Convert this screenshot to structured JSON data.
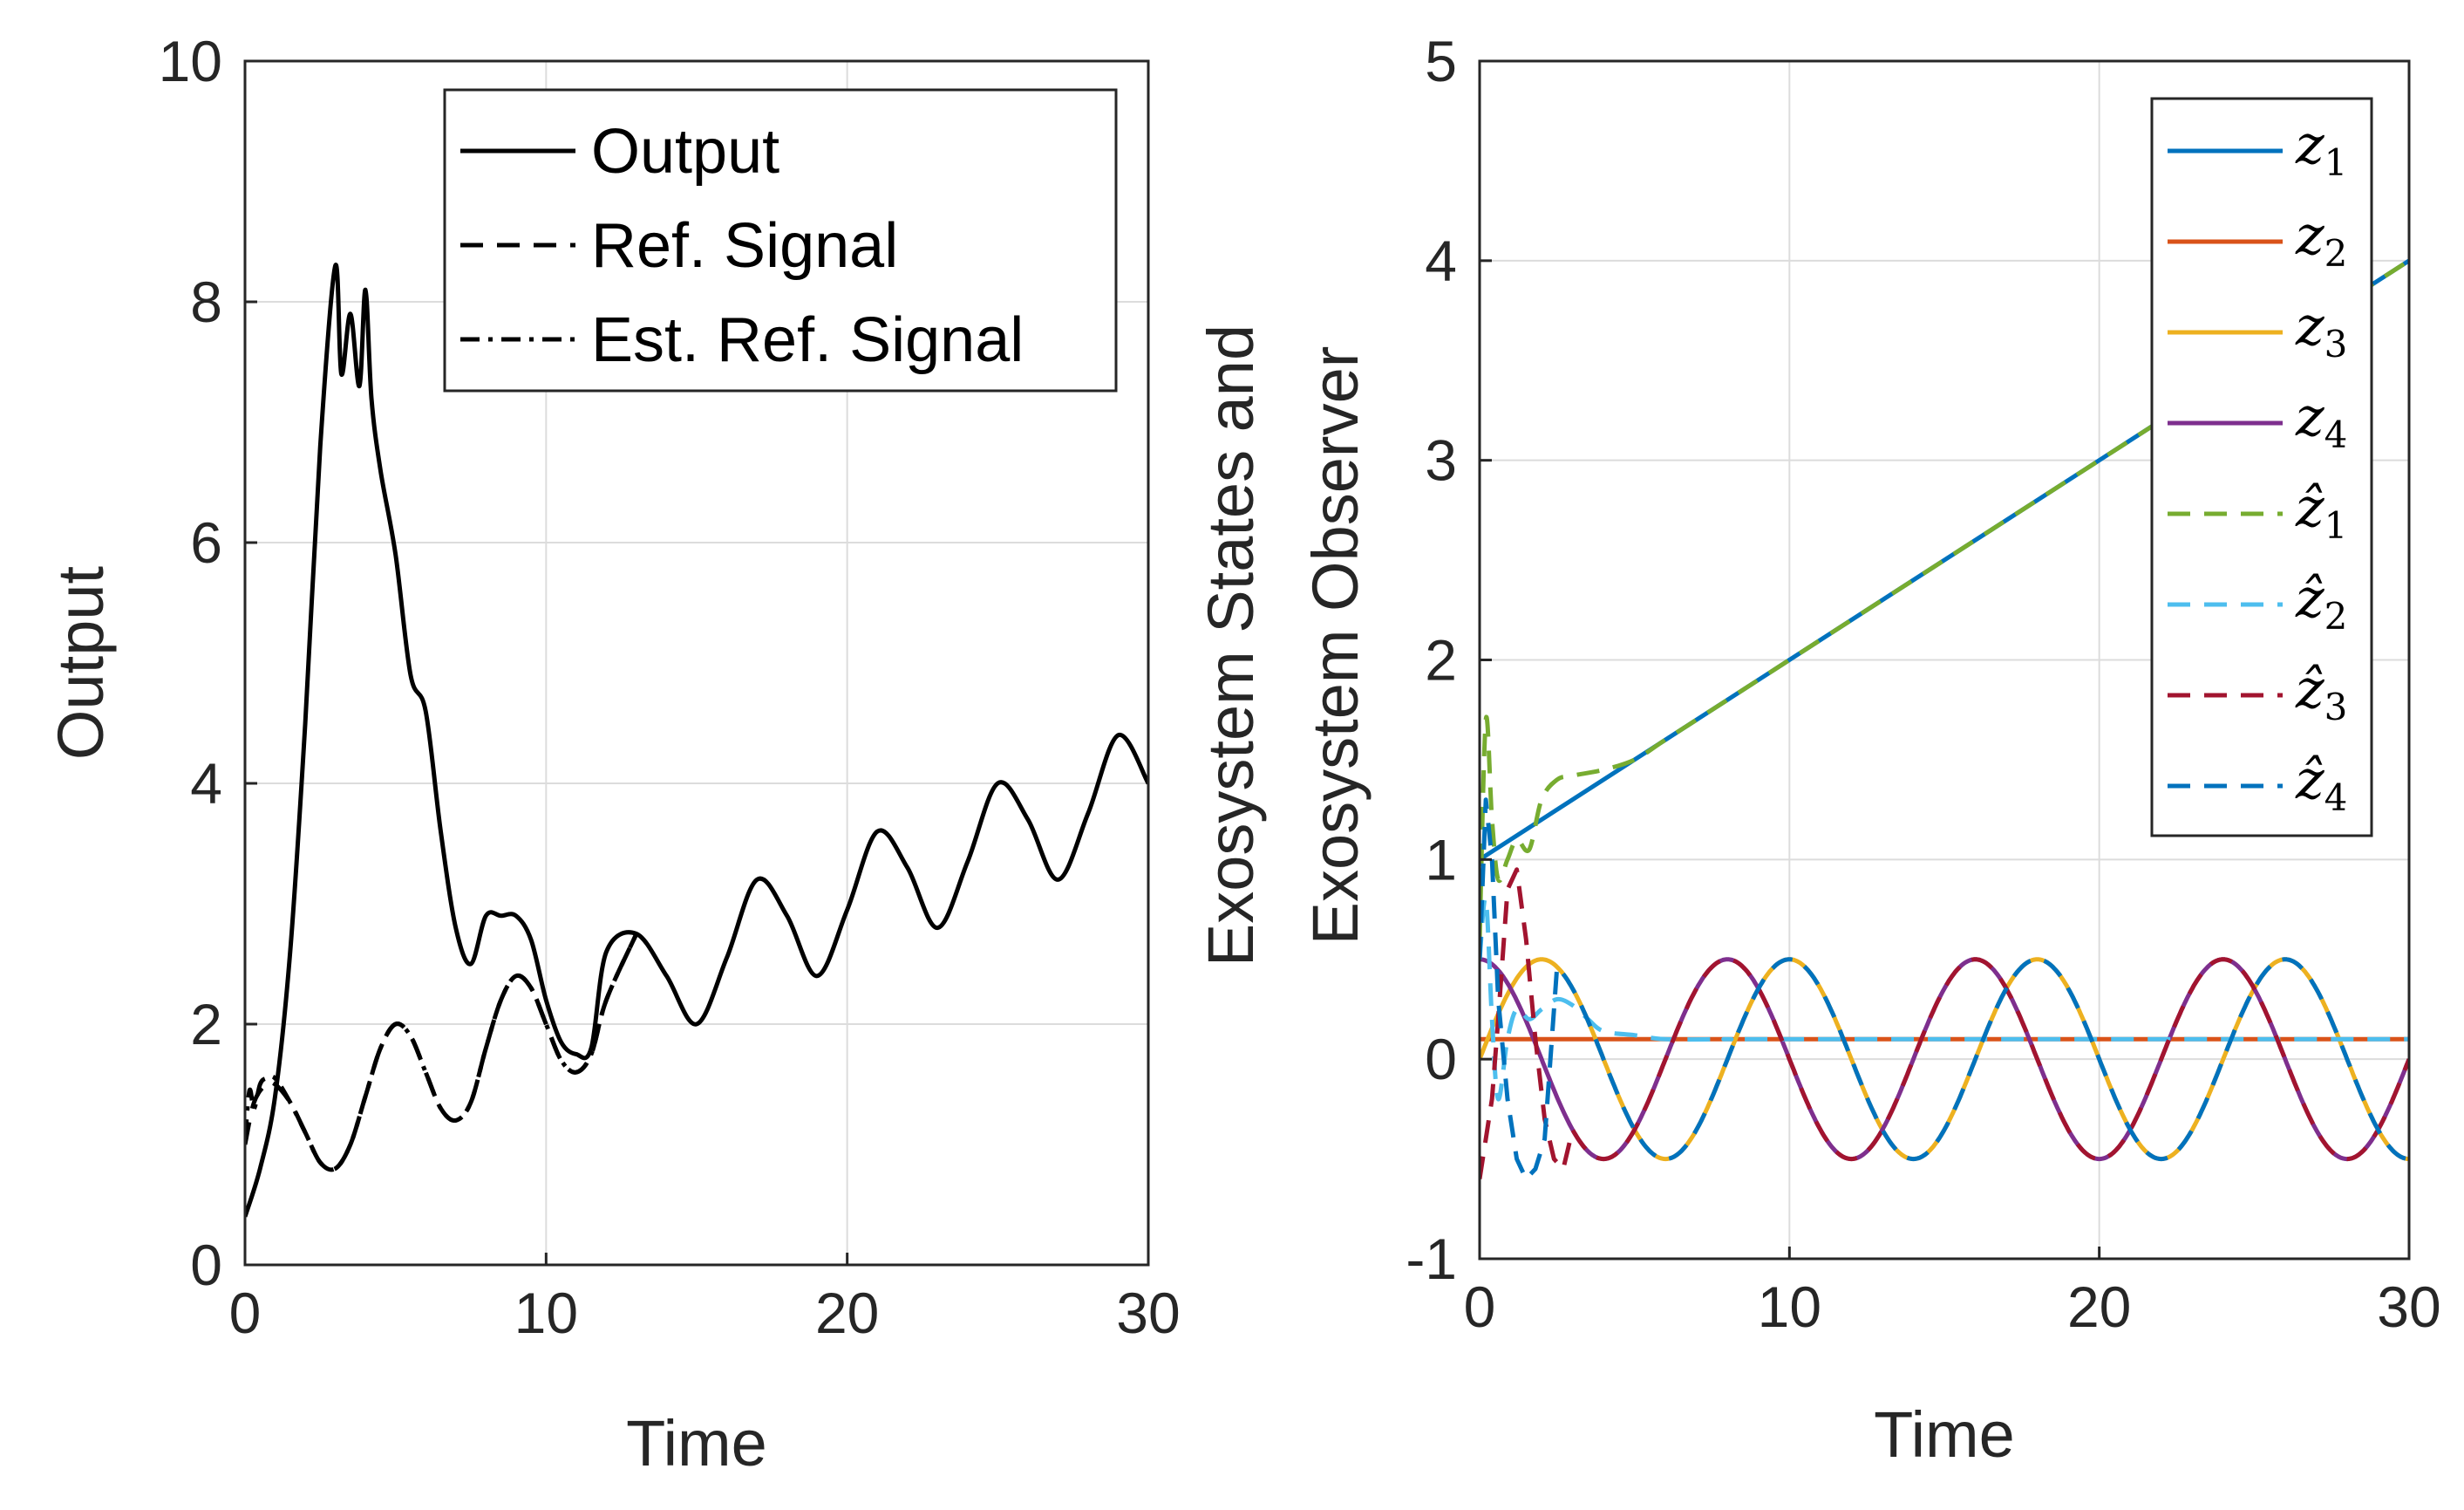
{
  "chart_data": [
    {
      "type": "line",
      "xlabel": "Time",
      "ylabel": "Output",
      "xlim": [
        0,
        30
      ],
      "ylim": [
        0,
        10
      ],
      "xticks": [
        "0",
        "10",
        "20",
        "30"
      ],
      "yticks": [
        "0",
        "2",
        "4",
        "6",
        "8",
        "10"
      ],
      "grid": true,
      "legend_position": "top-right",
      "series": [
        {
          "name": "Output",
          "style": "solid",
          "color": "#000000",
          "x": [
            0,
            0.5,
            1,
            1.5,
            2,
            2.5,
            3,
            3.2,
            3.5,
            3.8,
            4,
            4.2,
            4.5,
            5,
            5.5,
            6,
            6.5,
            7,
            7.5,
            8,
            8.5,
            9,
            9.5,
            10,
            10.5,
            11,
            11.5,
            12,
            13,
            14,
            15,
            16,
            17,
            18,
            19,
            20,
            21,
            22,
            23,
            24,
            25,
            26,
            27,
            28,
            29,
            30
          ],
          "y": [
            0.4,
            0.8,
            1.4,
            2.6,
            4.5,
            6.8,
            8.3,
            7.4,
            7.9,
            7.3,
            8.1,
            7.2,
            6.6,
            5.9,
            4.9,
            4.6,
            3.6,
            2.8,
            2.5,
            2.9,
            2.9,
            2.9,
            2.7,
            2.2,
            1.85,
            1.75,
            1.8,
            2.6,
            2.75,
            2.4,
            2.0,
            2.55,
            3.2,
            2.9,
            2.4,
            2.95,
            3.6,
            3.3,
            2.8,
            3.35,
            4.0,
            3.7,
            3.2,
            3.75,
            4.4,
            4.0
          ]
        },
        {
          "name": "Ref. Signal",
          "style": "dashed",
          "color": "#000000",
          "x": [
            0,
            0.3,
            0.7,
            1,
            1.5,
            2,
            2.5,
            3,
            3.5,
            4,
            4.5,
            5,
            5.5,
            6,
            6.5,
            7,
            7.5,
            8,
            8.5,
            9,
            9.5,
            10,
            10.5,
            11,
            11.5,
            12,
            13
          ],
          "y": [
            1.0,
            1.35,
            1.5,
            1.5,
            1.35,
            1.1,
            0.85,
            0.8,
            1.0,
            1.4,
            1.8,
            2.0,
            1.9,
            1.6,
            1.3,
            1.2,
            1.35,
            1.8,
            2.2,
            2.4,
            2.3,
            2.0,
            1.7,
            1.6,
            1.75,
            2.2,
            2.75
          ]
        },
        {
          "name": "Est. Ref. Signal",
          "style": "dashdot",
          "color": "#000000",
          "x": [
            0,
            0.15,
            0.3,
            0.5,
            0.7,
            1,
            1.5,
            2,
            2.5,
            3,
            3.5,
            4,
            4.5,
            5,
            5.5,
            6,
            6.5,
            7,
            7.5,
            8,
            8.5,
            9,
            9.5,
            10,
            10.5,
            11,
            11.5,
            12,
            13
          ],
          "y": [
            1.05,
            1.45,
            1.3,
            1.5,
            1.55,
            1.55,
            1.35,
            1.1,
            0.85,
            0.8,
            1.0,
            1.4,
            1.8,
            2.0,
            1.9,
            1.6,
            1.3,
            1.2,
            1.35,
            1.8,
            2.2,
            2.4,
            2.3,
            2.0,
            1.7,
            1.6,
            1.75,
            2.2,
            2.75
          ]
        }
      ]
    },
    {
      "type": "line",
      "xlabel": "Time",
      "ylabel_lines": [
        "Exosystem States and",
        "Exosystem Observer"
      ],
      "xlim": [
        0,
        30
      ],
      "ylim": [
        -1,
        5
      ],
      "xticks": [
        "0",
        "10",
        "20",
        "30"
      ],
      "yticks": [
        "-1",
        "0",
        "1",
        "2",
        "3",
        "4",
        "5"
      ],
      "grid": true,
      "legend_position": "top-right",
      "series": [
        {
          "name": "z",
          "sub": "1",
          "hat": false,
          "style": "solid",
          "color": "#0072BD",
          "model": "ramp",
          "offset": 1.0,
          "slope": 0.1
        },
        {
          "name": "z",
          "sub": "2",
          "hat": false,
          "style": "solid",
          "color": "#D95319",
          "model": "const",
          "value": 0.1
        },
        {
          "name": "z",
          "sub": "3",
          "hat": false,
          "style": "solid",
          "color": "#EDB120",
          "model": "sine",
          "amplitude": 0.5,
          "period": 8,
          "phase_deg": 0,
          "x": [
            0,
            30
          ]
        },
        {
          "name": "z",
          "sub": "4",
          "hat": false,
          "style": "solid",
          "color": "#7E2F8E",
          "model": "sine",
          "amplitude": 0.5,
          "period": 8,
          "phase_deg": 90,
          "x": [
            0,
            30
          ]
        },
        {
          "name": "z",
          "sub": "1",
          "hat": true,
          "style": "dashed",
          "color": "#77AC30",
          "x": [
            0,
            0.2,
            0.4,
            0.6,
            0.9,
            1.2,
            1.6,
            2,
            2.5,
            3,
            4,
            5,
            6,
            8,
            10,
            15,
            20,
            25,
            30
          ],
          "y": [
            0.6,
            1.7,
            1.2,
            0.9,
            1.0,
            1.1,
            1.05,
            1.3,
            1.4,
            1.42,
            1.45,
            1.5,
            1.6,
            1.8,
            2.0,
            2.5,
            3.0,
            3.5,
            4.0
          ]
        },
        {
          "name": "z",
          "sub": "2",
          "hat": true,
          "style": "dashed",
          "color": "#4DBEEE",
          "x": [
            0,
            0.2,
            0.4,
            0.6,
            0.9,
            1.2,
            1.6,
            2,
            2.5,
            3,
            3.5,
            4,
            5,
            6,
            8,
            10,
            30
          ],
          "y": [
            0.5,
            0.8,
            0.2,
            -0.2,
            0.1,
            0.25,
            0.2,
            0.25,
            0.3,
            0.27,
            0.2,
            0.14,
            0.12,
            0.1,
            0.1,
            0.1,
            0.1
          ]
        },
        {
          "name": "z",
          "sub": "3",
          "hat": true,
          "style": "dashed",
          "color": "#A2142F",
          "model": "sine",
          "amplitude": 0.5,
          "period": 8,
          "phase_deg": 90,
          "x": [
            3,
            30
          ],
          "prefix_x": [
            0,
            0.2,
            0.4,
            0.6,
            0.9,
            1.2,
            1.5,
            1.8,
            2.1,
            2.4,
            2.7,
            3
          ],
          "prefix_y": [
            -0.6,
            -0.4,
            -0.2,
            0.2,
            0.85,
            0.95,
            0.6,
            0.1,
            -0.3,
            -0.5,
            -0.55,
            -0.5
          ]
        },
        {
          "name": "z",
          "sub": "4",
          "hat": true,
          "style": "dashed",
          "color": "#0072BD",
          "model": "sine",
          "amplitude": 0.5,
          "period": 8,
          "phase_deg": 0,
          "x": [
            2.5,
            30
          ],
          "prefix_x": [
            0,
            0.2,
            0.4,
            0.6,
            0.9,
            1.2,
            1.5,
            1.8,
            2.1,
            2.5
          ],
          "prefix_y": [
            0.5,
            1.3,
            1.0,
            0.3,
            -0.2,
            -0.5,
            -0.6,
            -0.55,
            -0.4,
            -0.3
          ]
        }
      ]
    }
  ]
}
